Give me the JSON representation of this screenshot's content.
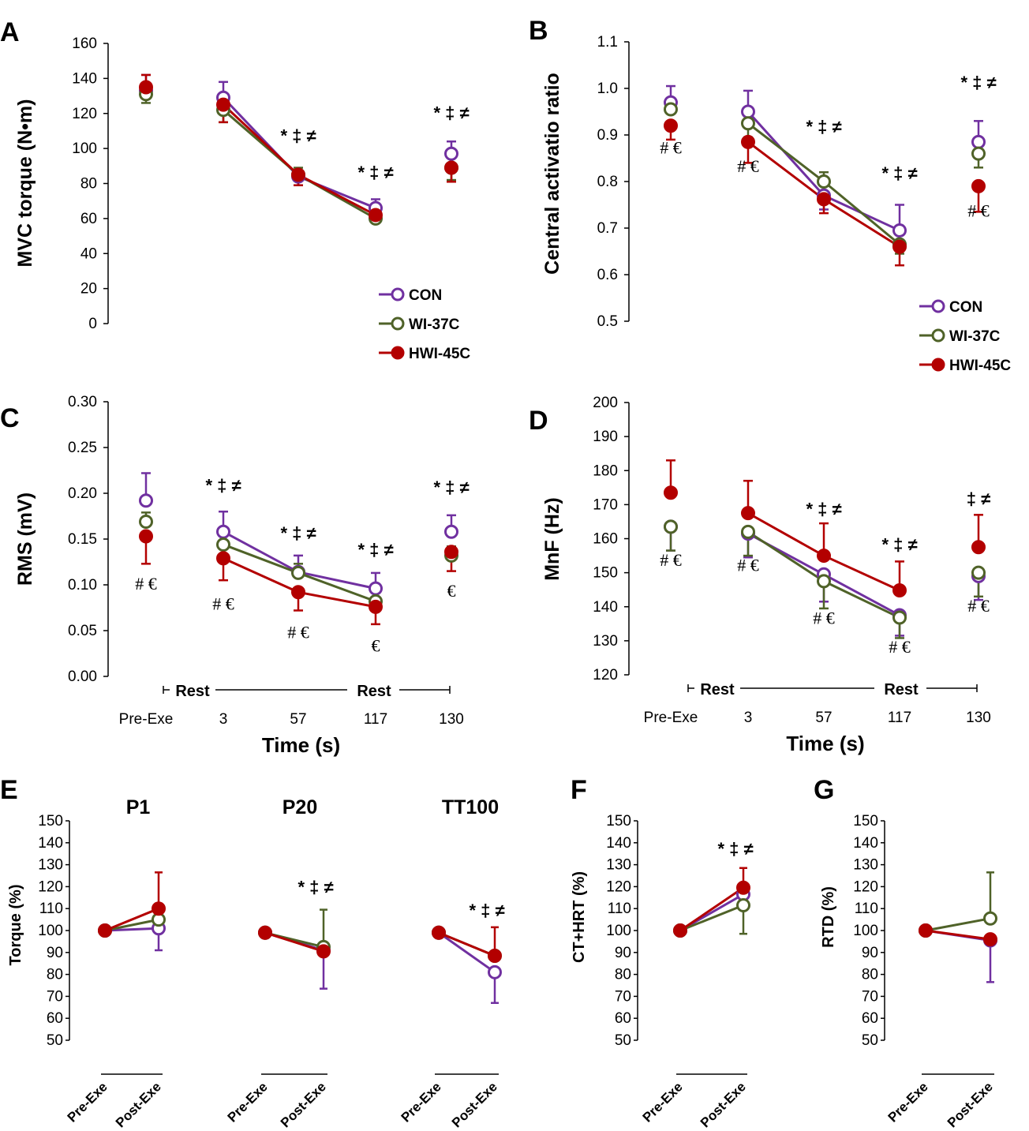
{
  "colors": {
    "CON": "#7030a0",
    "WI-37C": "#4f6228",
    "HWI-45C": "#b30000"
  },
  "legend": [
    "CON",
    "WI-37C",
    "HWI-45C"
  ],
  "rest_label": "Rest",
  "time_label": "Time (s)",
  "chart_data": [
    {
      "id": "A",
      "type": "line",
      "panel": "A",
      "ylabel": "MVC torque (N•m)",
      "ylim": [
        0,
        160
      ],
      "yticks": [
        "0",
        "20",
        "40",
        "60",
        "80",
        "100",
        "120",
        "140",
        "160"
      ],
      "categories": [
        "Pre-Exe",
        "3",
        "57",
        "117",
        "130"
      ],
      "show_x_labels": false,
      "series": [
        {
          "name": "CON",
          "values": [
            133,
            129,
            84,
            66,
            97
          ],
          "err": [
            9,
            9,
            5,
            5,
            7
          ],
          "err_dir": [
            1,
            1,
            -1,
            1,
            1
          ]
        },
        {
          "name": "WI-37C",
          "values": [
            131,
            122,
            85,
            60,
            89
          ],
          "err": [
            5,
            7,
            4,
            2,
            7
          ],
          "err_dir": [
            -1,
            -1,
            1,
            -1,
            -1
          ]
        },
        {
          "name": "HWI-45C",
          "values": [
            135,
            125,
            85,
            62,
            89
          ],
          "err": [
            7,
            10,
            6,
            3,
            8
          ],
          "err_dir": [
            1,
            -1,
            -1,
            -1,
            -1
          ]
        }
      ],
      "lines": [
        [
          1,
          2,
          3
        ]
      ],
      "annotations": [
        {
          "text": "* ‡ ≠",
          "cat": 2,
          "y": 104
        },
        {
          "text": "* ‡ ≠",
          "cat": 3,
          "y": 83
        },
        {
          "text": "* ‡ ≠",
          "cat": 4,
          "y": 117
        }
      ],
      "legend_loc": "bottom-right"
    },
    {
      "id": "B",
      "type": "line",
      "panel": "B",
      "ylabel": "Central activatio ratio",
      "ylim": [
        0.5,
        1.1
      ],
      "yticks": [
        "0.5",
        "0.6",
        "0.7",
        "0.8",
        "0.9",
        "1.0",
        "1.1"
      ],
      "categories": [
        "Pre-Exe",
        "3",
        "57",
        "117",
        "130"
      ],
      "show_x_labels": false,
      "series": [
        {
          "name": "CON",
          "values": [
            0.97,
            0.95,
            0.77,
            0.695,
            0.885
          ],
          "err": [
            0.035,
            0.045,
            0.03,
            0.055,
            0.045
          ],
          "err_dir": [
            1,
            1,
            -1,
            1,
            1
          ]
        },
        {
          "name": "WI-37C",
          "values": [
            0.955,
            0.925,
            0.8,
            0.665,
            0.86
          ],
          "err": [
            0.02,
            0.03,
            0.02,
            0.02,
            0.03
          ],
          "err_dir": [
            1,
            -1,
            1,
            -1,
            -1
          ]
        },
        {
          "name": "HWI-45C",
          "values": [
            0.92,
            0.885,
            0.762,
            0.66,
            0.79
          ],
          "err": [
            0.03,
            0.045,
            0.03,
            0.04,
            0.055
          ],
          "err_dir": [
            -1,
            -1,
            -1,
            -1,
            -1
          ]
        }
      ],
      "lines": [
        [
          1,
          2,
          3
        ]
      ],
      "annotations": [
        {
          "text": "# €",
          "cat": 0,
          "y": 0.86
        },
        {
          "text": "# €",
          "cat": 1,
          "y": 0.82
        },
        {
          "text": "* ‡ ≠",
          "cat": 2,
          "y": 0.905
        },
        {
          "text": "* ‡ ≠",
          "cat": 3,
          "y": 0.805
        },
        {
          "text": "* ‡ ≠",
          "cat": 4,
          "y": 1.0
        },
        {
          "text": "# €",
          "cat": 4,
          "y": 0.725
        }
      ],
      "legend_loc": "bottom-right"
    },
    {
      "id": "C",
      "type": "line",
      "panel": "C",
      "ylabel": "RMS (mV)",
      "ylim": [
        0,
        0.3
      ],
      "yticks": [
        "0.00",
        "0.05",
        "0.10",
        "0.15",
        "0.20",
        "0.25",
        "0.30"
      ],
      "categories": [
        "Pre-Exe",
        "3",
        "57",
        "117",
        "130"
      ],
      "show_x_labels": true,
      "series": [
        {
          "name": "CON",
          "values": [
            0.192,
            0.158,
            0.114,
            0.096,
            0.158
          ],
          "err": [
            0.03,
            0.022,
            0.018,
            0.017,
            0.018
          ],
          "err_dir": [
            1,
            1,
            1,
            1,
            1
          ]
        },
        {
          "name": "WI-37C",
          "values": [
            0.169,
            0.144,
            0.113,
            0.082,
            0.132
          ],
          "err": [
            0.01,
            0.01,
            0.01,
            0.01,
            0.01
          ],
          "err_dir": [
            1,
            1,
            1,
            -1,
            1
          ]
        },
        {
          "name": "HWI-45C",
          "values": [
            0.153,
            0.129,
            0.092,
            0.076,
            0.136
          ],
          "err": [
            0.03,
            0.024,
            0.02,
            0.019,
            0.021
          ],
          "err_dir": [
            -1,
            -1,
            -1,
            -1,
            -1
          ]
        }
      ],
      "lines": [
        [
          1,
          2,
          3
        ]
      ],
      "annotations": [
        {
          "text": "# €",
          "cat": 0,
          "y": 0.095
        },
        {
          "text": "* ‡ ≠",
          "cat": 1,
          "y": 0.202
        },
        {
          "text": "# €",
          "cat": 1,
          "y": 0.073
        },
        {
          "text": "* ‡ ≠",
          "cat": 2,
          "y": 0.15
        },
        {
          "text": "# €",
          "cat": 2,
          "y": 0.042
        },
        {
          "text": "* ‡ ≠",
          "cat": 3,
          "y": 0.132
        },
        {
          "text": "€",
          "cat": 3,
          "y": 0.027
        },
        {
          "text": "* ‡ ≠",
          "cat": 4,
          "y": 0.2
        },
        {
          "text": "€",
          "cat": 4,
          "y": 0.087
        }
      ]
    },
    {
      "id": "D",
      "type": "line",
      "panel": "D",
      "ylabel": "MnF (Hz)",
      "ylim": [
        120,
        200
      ],
      "yticks": [
        "120",
        "130",
        "140",
        "150",
        "160",
        "170",
        "180",
        "190",
        "200"
      ],
      "categories": [
        "Pre-Exe",
        "3",
        "57",
        "117",
        "130"
      ],
      "show_x_labels": true,
      "series": [
        {
          "name": "CON",
          "values": [
            163.5,
            161.5,
            149.5,
            137.5,
            149
          ],
          "err": [
            7,
            7,
            8,
            6,
            7
          ],
          "err_dir": [
            -1,
            -1,
            -1,
            -1,
            -1
          ]
        },
        {
          "name": "WI-37C",
          "values": [
            163.5,
            162,
            147.5,
            136.8,
            150
          ],
          "err": [
            7,
            7,
            8,
            6,
            7
          ],
          "err_dir": [
            -1,
            -1,
            -1,
            -1,
            -1
          ]
        },
        {
          "name": "HWI-45C",
          "values": [
            173.5,
            167.5,
            155,
            144.8,
            157.5
          ],
          "err": [
            9.5,
            9.5,
            9.5,
            8.5,
            9.5
          ],
          "err_dir": [
            1,
            1,
            1,
            1,
            1
          ]
        }
      ],
      "lines": [
        [
          1,
          2,
          3
        ]
      ],
      "annotations": [
        {
          "text": "# €",
          "cat": 0,
          "y": 152
        },
        {
          "text": "# €",
          "cat": 1,
          "y": 150.5
        },
        {
          "text": "* ‡ ≠",
          "cat": 2,
          "y": 167
        },
        {
          "text": "# €",
          "cat": 2,
          "y": 135
        },
        {
          "text": "* ‡ ≠",
          "cat": 3,
          "y": 156.5
        },
        {
          "text": "# €",
          "cat": 3,
          "y": 126.5
        },
        {
          "text": "‡ ≠",
          "cat": 4,
          "y": 170
        },
        {
          "text": "# €",
          "cat": 4,
          "y": 138.5
        }
      ]
    },
    {
      "id": "E",
      "type": "line",
      "panel": "E",
      "ylabel": "Torque (%)",
      "ylim": [
        50,
        150
      ],
      "yticks": [
        "50",
        "60",
        "70",
        "80",
        "90",
        "100",
        "110",
        "120",
        "130",
        "140",
        "150"
      ],
      "subpanels": [
        {
          "title": "P1",
          "categories": [
            "Pre-Exe",
            "Post-Exe"
          ],
          "series": [
            {
              "name": "CON",
              "values": [
                100,
                101
              ],
              "err": [
                0,
                10
              ],
              "err_dir": [
                1,
                -1
              ]
            },
            {
              "name": "WI-37C",
              "values": [
                100,
                105
              ],
              "err": [
                0,
                0
              ],
              "err_dir": [
                1,
                1
              ]
            },
            {
              "name": "HWI-45C",
              "values": [
                100,
                110
              ],
              "err": [
                0,
                16.5
              ],
              "err_dir": [
                1,
                1
              ]
            }
          ],
          "annotations": []
        },
        {
          "title": "P20",
          "categories": [
            "Pre-Exe",
            "Post-Exe"
          ],
          "series": [
            {
              "name": "CON",
              "values": [
                99,
                91
              ],
              "err": [
                0,
                17.5
              ],
              "err_dir": [
                1,
                -1
              ]
            },
            {
              "name": "WI-37C",
              "values": [
                99,
                92.5
              ],
              "err": [
                0,
                17
              ],
              "err_dir": [
                1,
                1
              ]
            },
            {
              "name": "HWI-45C",
              "values": [
                99,
                90.5
              ],
              "err": [
                0,
                0
              ],
              "err_dir": [
                1,
                1
              ]
            }
          ],
          "annotations": [
            {
              "text": "* ‡ ≠",
              "y": 117
            }
          ]
        },
        {
          "title": "TT100",
          "categories": [
            "Pre-Exe",
            "Post-Exe"
          ],
          "series": [
            {
              "name": "CON",
              "values": [
                99,
                81
              ],
              "err": [
                0,
                14
              ],
              "err_dir": [
                1,
                -1
              ]
            },
            {
              "name": "WI-37C",
              "values": [
                99,
                88.5
              ],
              "err": [
                0,
                0
              ],
              "err_dir": [
                1,
                1
              ]
            },
            {
              "name": "HWI-45C",
              "values": [
                99,
                88.5
              ],
              "err": [
                0,
                13
              ],
              "err_dir": [
                1,
                1
              ]
            }
          ],
          "annotations": [
            {
              "text": "* ‡ ≠",
              "y": 106.5
            }
          ]
        }
      ]
    },
    {
      "id": "F",
      "type": "line",
      "panel": "F",
      "ylabel": "CT+HRT (%)",
      "ylim": [
        50,
        150
      ],
      "yticks": [
        "50",
        "60",
        "70",
        "80",
        "90",
        "100",
        "110",
        "120",
        "130",
        "140",
        "150"
      ],
      "categories": [
        "Pre-Exe",
        "Post-Exe"
      ],
      "series": [
        {
          "name": "CON",
          "values": [
            100,
            116.5
          ],
          "err": [
            0,
            0
          ],
          "err_dir": [
            1,
            1
          ]
        },
        {
          "name": "WI-37C",
          "values": [
            100,
            111.5
          ],
          "err": [
            0,
            13
          ],
          "err_dir": [
            1,
            -1
          ]
        },
        {
          "name": "HWI-45C",
          "values": [
            100,
            119.5
          ],
          "err": [
            0,
            9
          ],
          "err_dir": [
            1,
            1
          ]
        }
      ],
      "annotations": [
        {
          "text": "* ‡ ≠",
          "y": 134.5
        }
      ]
    },
    {
      "id": "G",
      "type": "line",
      "panel": "G",
      "ylabel": "RTD (%)",
      "ylim": [
        50,
        150
      ],
      "yticks": [
        "50",
        "60",
        "70",
        "80",
        "90",
        "100",
        "110",
        "120",
        "130",
        "140",
        "150"
      ],
      "categories": [
        "Pre-Exe",
        "Post-Exe"
      ],
      "series": [
        {
          "name": "CON",
          "values": [
            100,
            95.5
          ],
          "err": [
            0,
            19
          ],
          "err_dir": [
            1,
            -1
          ]
        },
        {
          "name": "WI-37C",
          "values": [
            100,
            105.5
          ],
          "err": [
            0,
            21
          ],
          "err_dir": [
            1,
            1
          ]
        },
        {
          "name": "HWI-45C",
          "values": [
            100,
            96
          ],
          "err": [
            0,
            0
          ],
          "err_dir": [
            1,
            1
          ]
        }
      ],
      "annotations": []
    }
  ]
}
